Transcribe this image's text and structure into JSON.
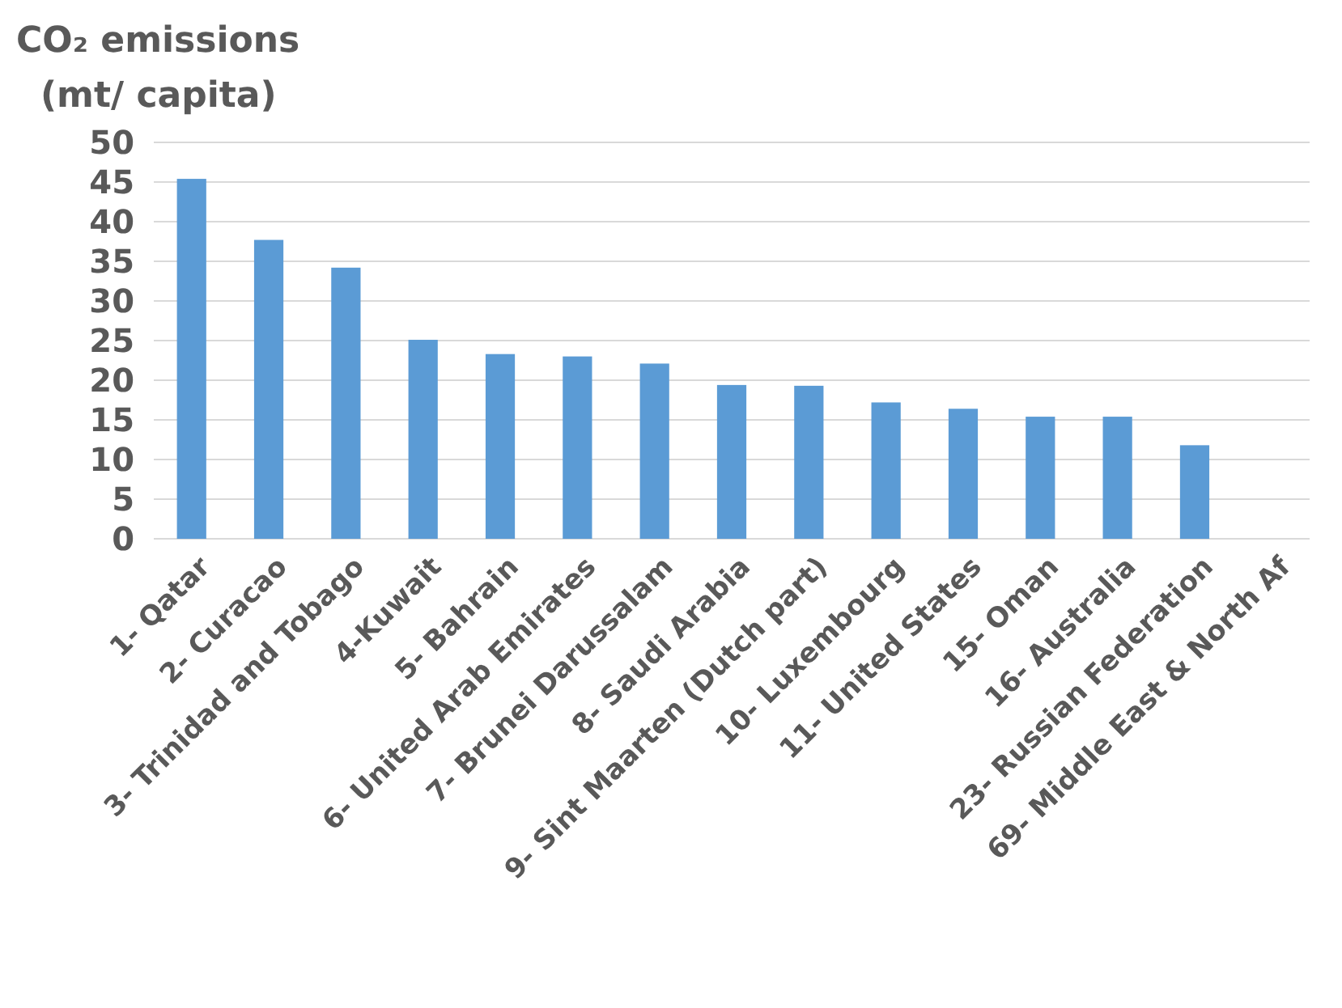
{
  "chart_data": {
    "type": "bar",
    "ylabel": "CO₂ emissions (mt/ capita)",
    "categories": [
      "1- Qatar",
      "2- Curacao",
      "3- Trinidad and Tobago",
      "4-Kuwait",
      "5- Bahrain",
      "6- United Arab Emirates",
      "7- Brunei Darussalam",
      "8- Saudi Arabia",
      "9- Sint Maarten (Dutch part)",
      "10- Luxembourg",
      "11- United States",
      "15- Oman",
      "16- Australia",
      "23- Russian Federation",
      "69- Middle East & North Af"
    ],
    "values": [
      45.4,
      37.7,
      34.2,
      25.1,
      23.3,
      23.0,
      22.1,
      19.4,
      19.3,
      17.2,
      16.4,
      15.4,
      15.4,
      11.8,
      null
    ],
    "color": "#5b9bd5",
    "ylim": [
      0,
      50
    ],
    "yticks": [
      0,
      5,
      10,
      15,
      20,
      25,
      30,
      35,
      40,
      45,
      50
    ],
    "grid": "y"
  }
}
